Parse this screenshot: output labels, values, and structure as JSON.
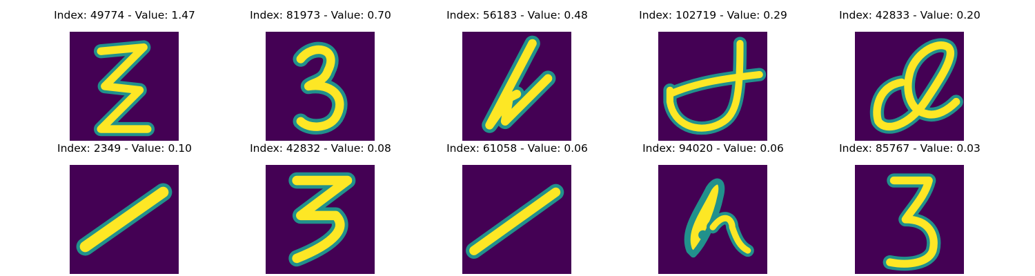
{
  "colormap": {
    "background": "#440154",
    "edge": "#21918c",
    "mid": "#5ec962",
    "core": "#fde725"
  },
  "panels": [
    {
      "title": "Index: 49774 - Value: 1.47",
      "glyph": "glyph-z-like"
    },
    {
      "title": "Index: 81973 - Value: 0.70",
      "glyph": "glyph-3-like"
    },
    {
      "title": "Index: 56183 - Value: 0.48",
      "glyph": "glyph-4-like"
    },
    {
      "title": "Index: 102719 - Value: 0.29",
      "glyph": "glyph-cursive"
    },
    {
      "title": "Index: 42833 - Value: 0.20",
      "glyph": "glyph-loop"
    },
    {
      "title": "Index: 2349 - Value: 0.10",
      "glyph": "glyph-diagonal-stroke"
    },
    {
      "title": "Index: 42832 - Value: 0.08",
      "glyph": "glyph-3-like"
    },
    {
      "title": "Index: 61058 - Value: 0.06",
      "glyph": "glyph-diagonal-stroke"
    },
    {
      "title": "Index: 94020 - Value: 0.06",
      "glyph": "glyph-blob"
    },
    {
      "title": "Index: 85767 - Value: 0.03",
      "glyph": "glyph-3"
    }
  ]
}
